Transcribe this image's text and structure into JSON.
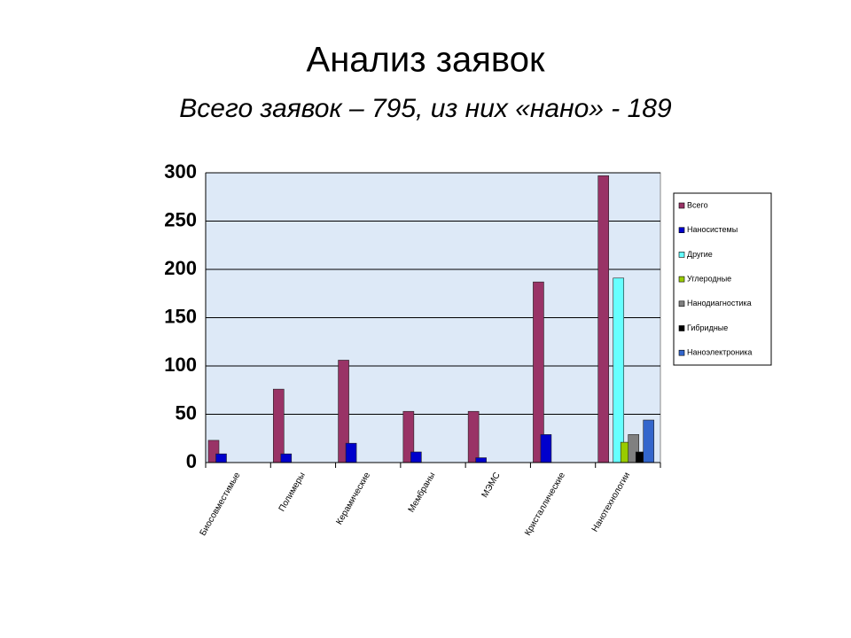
{
  "chart_data": {
    "type": "bar",
    "title": "Анализ заявок",
    "subtitle": "Всего заявок – 795, из них «нано» - 189",
    "categories": [
      "Биосовместимые",
      "Полимеры",
      "Керамические",
      "Мембраны",
      "МЭМС",
      "Кристаллические",
      "Нанотехнологии"
    ],
    "series": [
      {
        "name": "Всего",
        "color": "#993366",
        "values": [
          23,
          76,
          106,
          53,
          53,
          187,
          297
        ]
      },
      {
        "name": "Наносистемы",
        "color": "#0000cc",
        "values": [
          9,
          9,
          20,
          11,
          5,
          29,
          0
        ]
      },
      {
        "name": "Другие",
        "color": "#66ffff",
        "values": [
          0,
          0,
          0,
          0,
          0,
          0,
          191
        ]
      },
      {
        "name": "Углеродные",
        "color": "#99cc00",
        "values": [
          0,
          0,
          0,
          0,
          0,
          0,
          21
        ]
      },
      {
        "name": "Нанодиагностика",
        "color": "#808080",
        "values": [
          0,
          0,
          0,
          0,
          0,
          0,
          29
        ]
      },
      {
        "name": "Гибридные",
        "color": "#000000",
        "values": [
          0,
          0,
          0,
          0,
          0,
          0,
          11
        ]
      },
      {
        "name": "Наноэлектроника",
        "color": "#3366cc",
        "values": [
          0,
          0,
          0,
          0,
          0,
          0,
          44
        ]
      }
    ],
    "ylim": [
      0,
      300
    ],
    "yticks": [
      0,
      50,
      100,
      150,
      200,
      250,
      300
    ],
    "grid": true,
    "legend": "right"
  }
}
